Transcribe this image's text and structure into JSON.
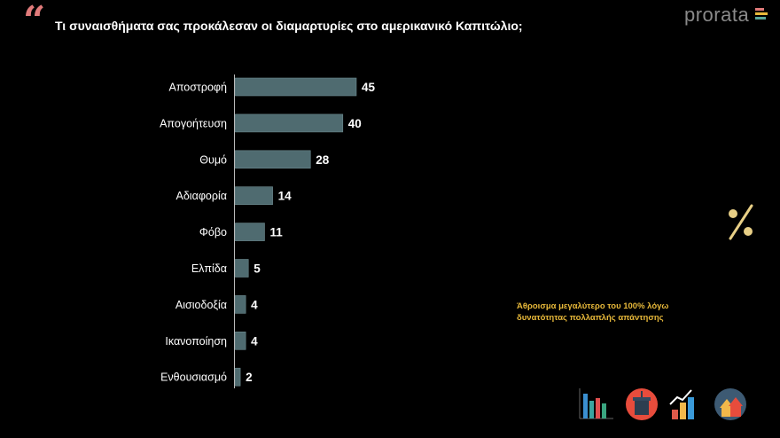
{
  "header": {
    "quote_mark": "“",
    "title": "Τι συναισθήματα σας προκάλεσαν οι διαμαρτυρίες στο αμερικανικό Καπιτώλιο;",
    "logo": "prorata"
  },
  "note": {
    "line1": "Άθροισμα μεγαλύτερο του 100% λόγω",
    "line2": "δυνατότητας πολλαπλής απάντησης"
  },
  "colors": {
    "bar": "#4f6b70",
    "note": "#e8b93a",
    "quote": "#e07a7a",
    "percent": "#e8cf86"
  },
  "icons": [
    "percent-icon",
    "bar-chart-icon",
    "podium-icon",
    "growth-chart-icon",
    "houses-icon"
  ],
  "chart_data": {
    "type": "bar",
    "orientation": "horizontal",
    "categories": [
      "Αποστροφή",
      "Απογοήτευση",
      "Θυμό",
      "Αδιαφορία",
      "Φόβο",
      "Ελπίδα",
      "Αισιοδοξία",
      "Ικανοποίηση",
      "Ενθουσιασμό"
    ],
    "values": [
      45,
      40,
      28,
      14,
      11,
      5,
      4,
      4,
      2
    ],
    "xlim": [
      0,
      45
    ],
    "grid": false,
    "data_labels": true
  }
}
